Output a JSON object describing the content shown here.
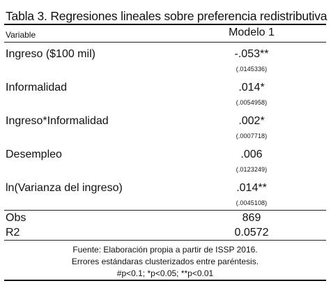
{
  "table": {
    "title": "Tabla 3. Regresiones lineales sobre preferencia redistributiva",
    "variable_header": "Variable",
    "model_header": "Modelo 1",
    "rows": [
      {
        "label": "Ingreso ($100 mil)",
        "coef": "-.053**",
        "se": "(.0145336)"
      },
      {
        "label": "Informalidad",
        "coef": ".014*",
        "se": "(.0054958)"
      },
      {
        "label": "Ingreso*Informalidad",
        "coef": ".002*",
        "se": "(.0007718)"
      },
      {
        "label": "Desempleo",
        "coef": ".006",
        "se": "(.0123249)"
      },
      {
        "label": "ln(Varianza del ingreso)",
        "coef": ".014**",
        "se": "(.0045108)"
      }
    ],
    "stats": [
      {
        "label": "Obs",
        "value": "869"
      },
      {
        "label": "R2",
        "value": "0.0572"
      }
    ],
    "notes": [
      "Fuente: Elaboración propia a partir de ISSP 2016.",
      "Errores estándaras clusterizados entre paréntesis.",
      "#p<0.1; *p<0.05; **p<0.01"
    ]
  }
}
